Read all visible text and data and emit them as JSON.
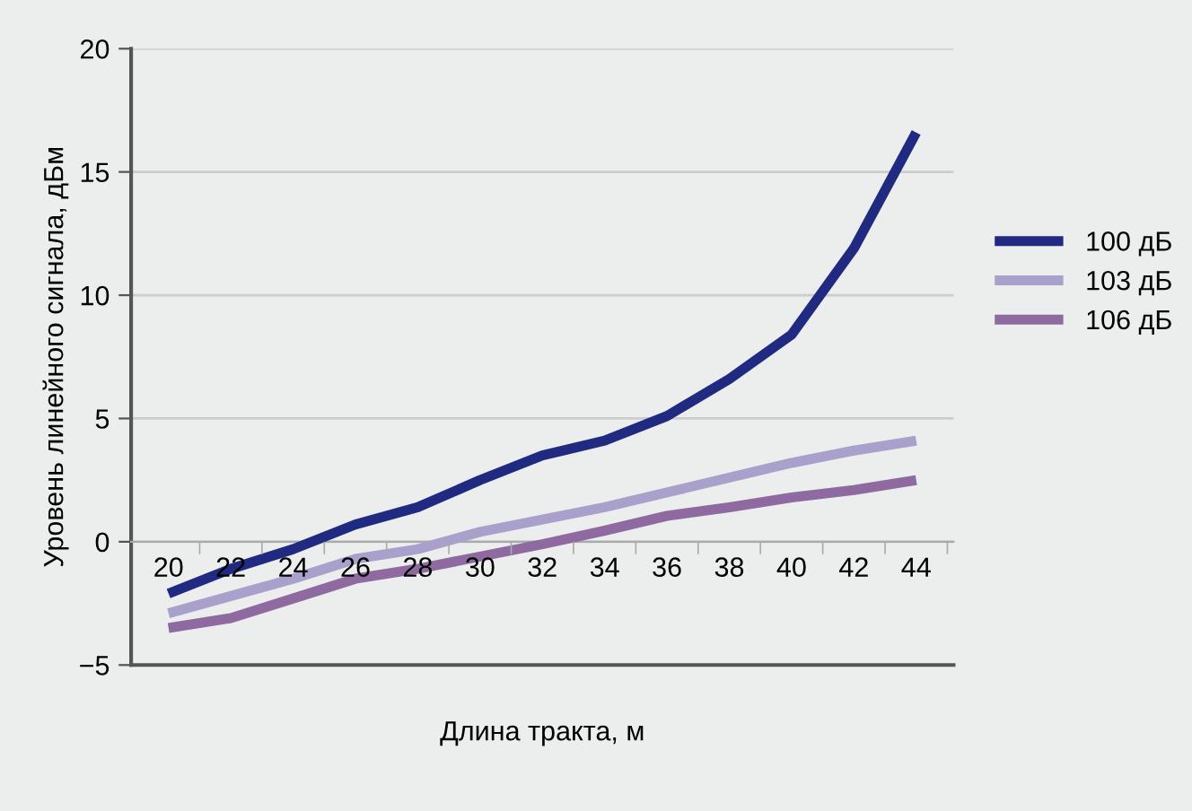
{
  "chart_data": {
    "type": "line",
    "xlabel": "Длина тракта, м",
    "ylabel": "Уровень линейного сигнала, дБм",
    "categories": [
      "20",
      "22",
      "24",
      "26",
      "28",
      "30",
      "32",
      "34",
      "36",
      "38",
      "40",
      "42",
      "44"
    ],
    "series": [
      {
        "name": "100 дБ",
        "color": "#1f2a80",
        "values": [
          -2.1,
          -1.1,
          -0.3,
          0.7,
          1.4,
          2.5,
          3.5,
          4.1,
          5.1,
          6.6,
          8.4,
          11.9,
          16.6
        ]
      },
      {
        "name": "103 дБ",
        "color": "#a9a0cc",
        "values": [
          -2.9,
          -2.2,
          -1.5,
          -0.7,
          -0.3,
          0.4,
          0.9,
          1.4,
          2.0,
          2.6,
          3.2,
          3.7,
          4.1
        ]
      },
      {
        "name": "106 дБ",
        "color": "#8e6aa0",
        "values": [
          -3.5,
          -3.1,
          -2.3,
          -1.5,
          -1.1,
          -0.6,
          -0.1,
          0.45,
          1.05,
          1.4,
          1.8,
          2.1,
          2.5
        ]
      }
    ],
    "ylim": [
      -5,
      20
    ],
    "yticks": [
      {
        "value": -5,
        "label": "−5"
      },
      0,
      5,
      10,
      15,
      20
    ],
    "grid": "y",
    "legend": "right",
    "marker": "none",
    "line_style": "solid"
  }
}
